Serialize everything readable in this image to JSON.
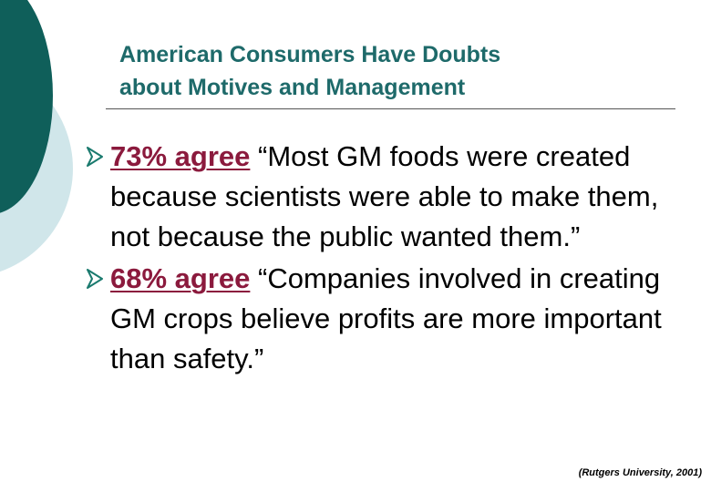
{
  "slide": {
    "title_lines": [
      "American Consumers Have Doubts",
      "about Motives and Management"
    ],
    "bullets": [
      {
        "stat": "73% agree",
        "quote": " “Most GM foods were created because scientists were able to make them, not because the public wanted them.”"
      },
      {
        "stat": "68% agree",
        "quote": " “Companies involved in creating GM crops believe profits are more important than safety.”"
      }
    ],
    "source": "(Rutgers University, 2001)"
  },
  "colors": {
    "title": "#1e6a6a",
    "stat": "#8b1a3d",
    "deco_dark": "#0f5f5a",
    "deco_light": "#d0e6ea",
    "arrow": "#1a7a6e"
  },
  "icons": {
    "bullet": "arrow-bullet-icon"
  }
}
